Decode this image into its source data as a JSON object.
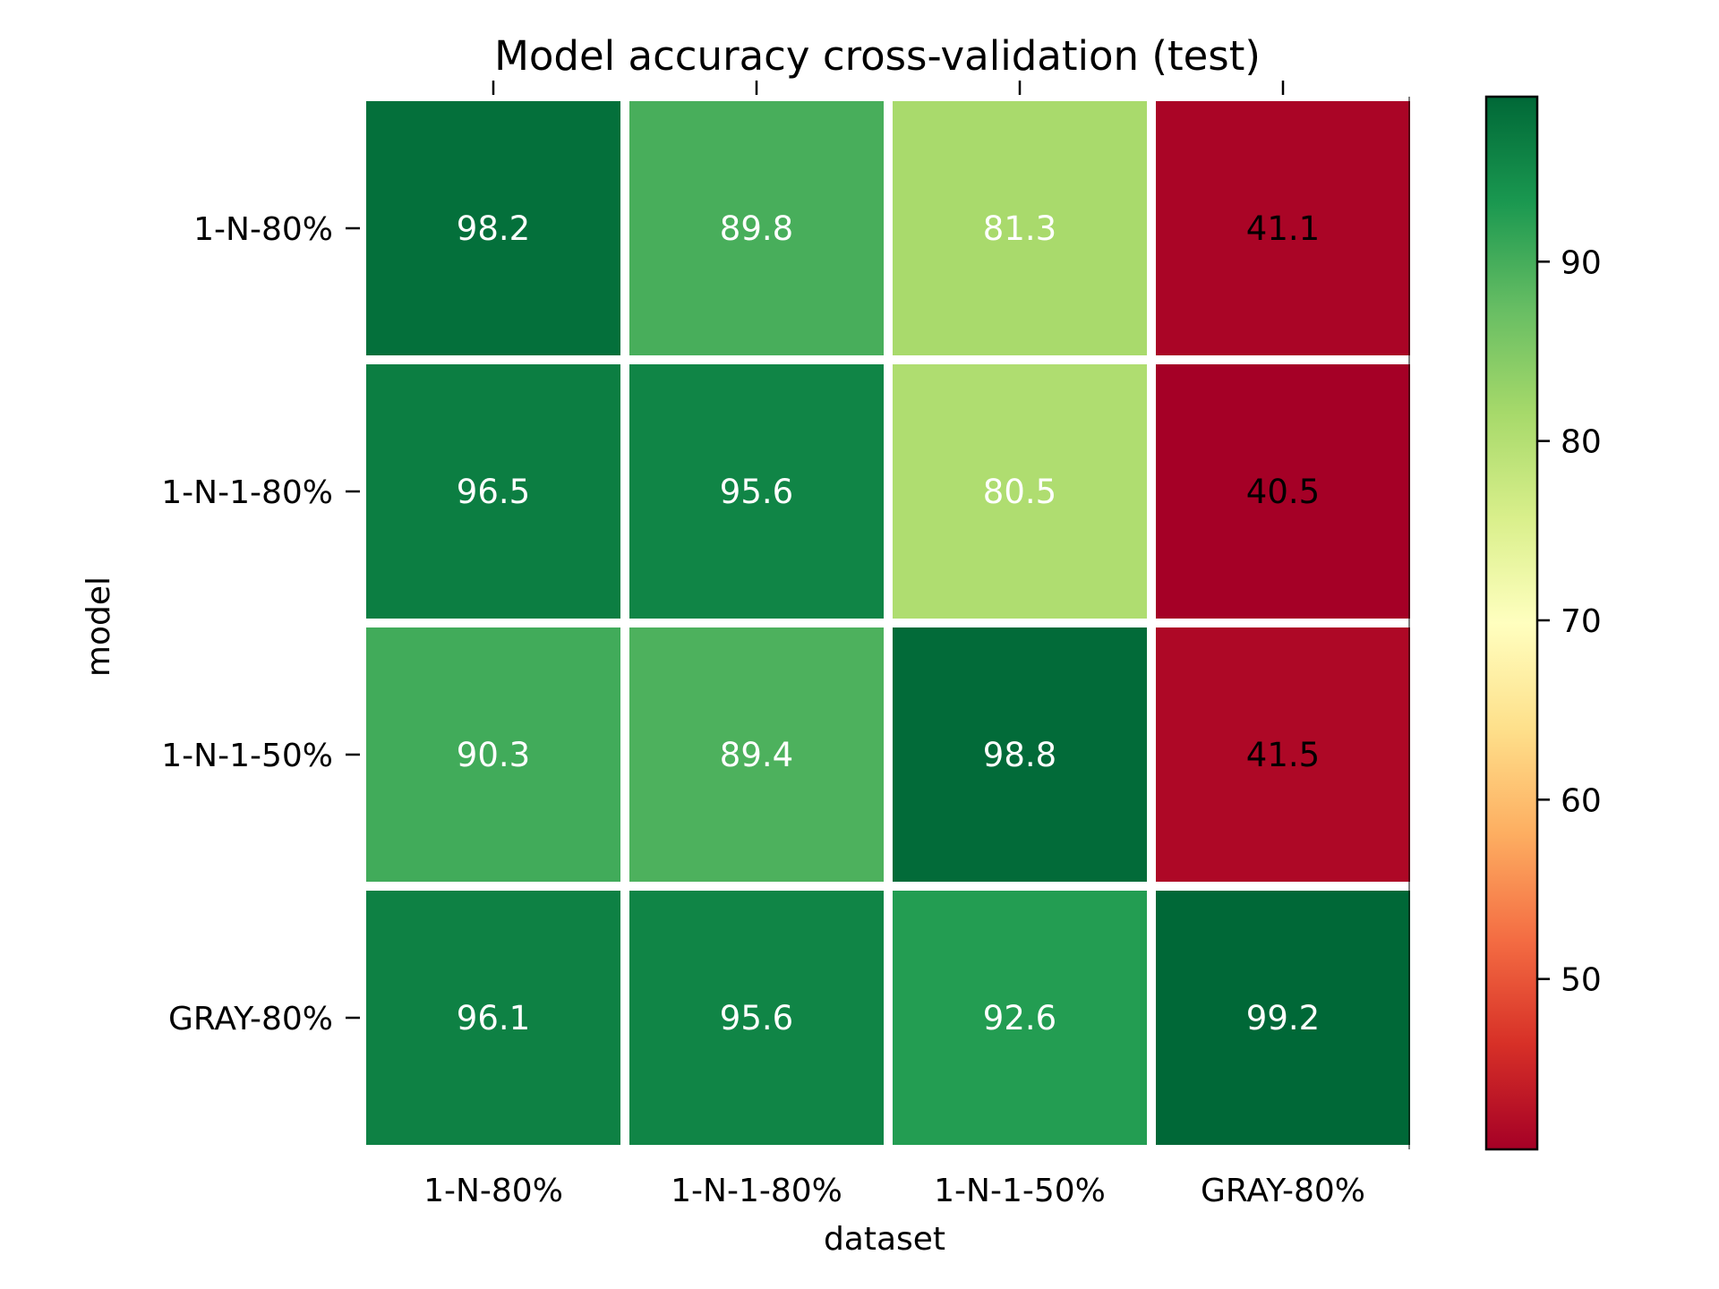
{
  "chart_data": {
    "type": "heatmap",
    "title": "Model accuracy cross-validation (test)",
    "xlabel": "dataset",
    "ylabel": "model",
    "x_categories": [
      "1-N-80%",
      "1-N-1-80%",
      "1-N-1-50%",
      "GRAY-80%"
    ],
    "y_categories": [
      "1-N-80%",
      "1-N-1-80%",
      "1-N-1-50%",
      "GRAY-80%"
    ],
    "values": [
      [
        98.2,
        89.8,
        81.3,
        41.1
      ],
      [
        96.5,
        95.6,
        80.5,
        40.5
      ],
      [
        90.3,
        89.4,
        98.8,
        41.5
      ],
      [
        96.1,
        95.6,
        92.6,
        99.2
      ]
    ],
    "colormap": "RdYlGn",
    "colorbar": {
      "range": [
        40.5,
        99.2
      ],
      "ticks": [
        50,
        60,
        70,
        80,
        90
      ],
      "position": "right"
    },
    "grid": false
  }
}
